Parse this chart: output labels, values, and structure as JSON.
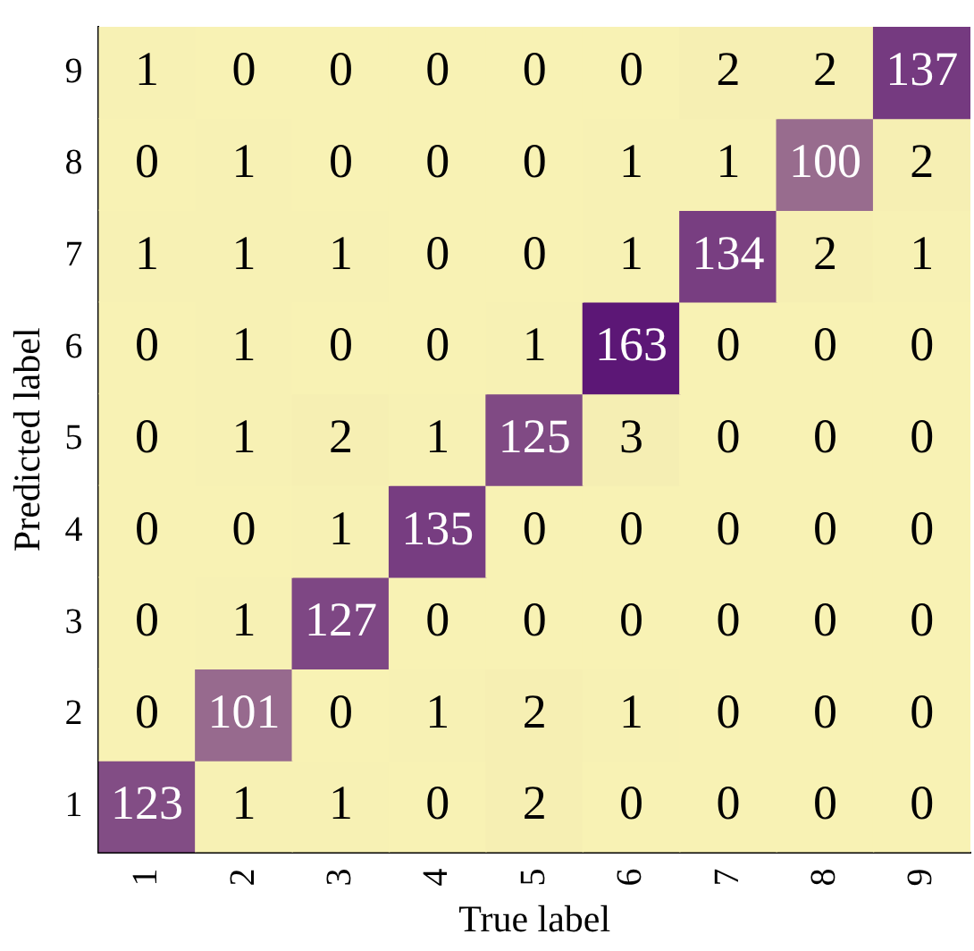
{
  "chart_data": {
    "type": "heatmap",
    "xlabel": "True label",
    "ylabel": "Predicted label",
    "categories": [
      "1",
      "2",
      "3",
      "4",
      "5",
      "6",
      "7",
      "8",
      "9"
    ],
    "y_categories": [
      "9",
      "8",
      "7",
      "6",
      "5",
      "4",
      "3",
      "2",
      "1"
    ],
    "colors": [
      "#f8f2b4",
      "#5c1776"
    ],
    "cells": [
      [
        1,
        0,
        0,
        0,
        0,
        0,
        2,
        2,
        137
      ],
      [
        0,
        1,
        0,
        0,
        0,
        1,
        1,
        100,
        2
      ],
      [
        1,
        1,
        1,
        0,
        0,
        1,
        134,
        2,
        1
      ],
      [
        0,
        1,
        0,
        0,
        1,
        163,
        0,
        0,
        0
      ],
      [
        0,
        1,
        2,
        1,
        125,
        3,
        0,
        0,
        0
      ],
      [
        0,
        0,
        1,
        135,
        0,
        0,
        0,
        0,
        0
      ],
      [
        0,
        1,
        127,
        0,
        0,
        0,
        0,
        0,
        0
      ],
      [
        0,
        101,
        0,
        1,
        2,
        1,
        0,
        0,
        0
      ],
      [
        123,
        1,
        1,
        0,
        2,
        0,
        0,
        0,
        0
      ]
    ],
    "data_labels": true,
    "grid": false
  }
}
